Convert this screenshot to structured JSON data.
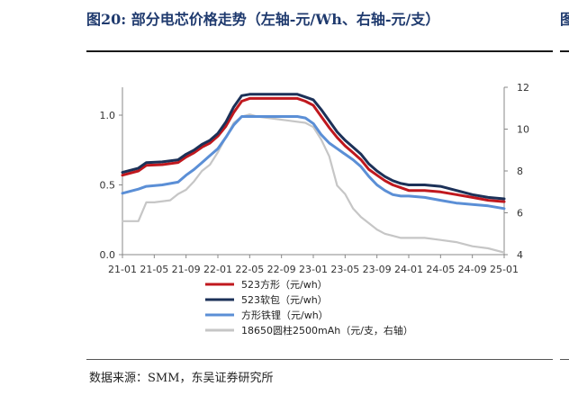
{
  "header": {
    "title": "图20:  部分电芯价格走势（左轴-元/Wh、右轴-元/支）"
  },
  "footer": {
    "source": "数据来源：SMM，东吴证券研究所"
  },
  "chart_data": {
    "type": "line",
    "title": "部分电芯价格走势（左轴-元/Wh、右轴-元/支）",
    "x_tick_labels": [
      "21-01",
      "21-05",
      "21-09",
      "22-01",
      "22-05",
      "22-09",
      "23-01",
      "23-05",
      "23-09",
      "24-01",
      "24-05",
      "24-09",
      "25-01"
    ],
    "x_range": [
      "21-01",
      "25-01"
    ],
    "y_left": {
      "label": "元/Wh",
      "range": [
        0,
        1.2
      ],
      "ticks": [
        "0.0",
        "0.5",
        "1.0"
      ]
    },
    "y_right": {
      "label": "元/支",
      "range": [
        4,
        12
      ],
      "ticks": [
        "4",
        "6",
        "8",
        "10",
        "12"
      ]
    },
    "grid": false,
    "legend_position": "bottom",
    "series": [
      {
        "name": "523方形（元/wh）",
        "axis": "left",
        "color": "#c0181e",
        "points": [
          [
            "2021-01",
            0.57
          ],
          [
            "2021-03",
            0.6
          ],
          [
            "2021-04",
            0.64
          ],
          [
            "2021-06",
            0.645
          ],
          [
            "2021-08",
            0.66
          ],
          [
            "2021-09",
            0.7
          ],
          [
            "2021-10",
            0.73
          ],
          [
            "2021-11",
            0.77
          ],
          [
            "2021-12",
            0.8
          ],
          [
            "2022-01",
            0.85
          ],
          [
            "2022-02",
            0.92
          ],
          [
            "2022-03",
            1.02
          ],
          [
            "2022-04",
            1.1
          ],
          [
            "2022-05",
            1.12
          ],
          [
            "2022-07",
            1.12
          ],
          [
            "2022-09",
            1.12
          ],
          [
            "2022-11",
            1.12
          ],
          [
            "2022-12",
            1.1
          ],
          [
            "2023-01",
            1.07
          ],
          [
            "2023-02",
            0.99
          ],
          [
            "2023-03",
            0.91
          ],
          [
            "2023-04",
            0.84
          ],
          [
            "2023-05",
            0.78
          ],
          [
            "2023-06",
            0.73
          ],
          [
            "2023-07",
            0.68
          ],
          [
            "2023-08",
            0.61
          ],
          [
            "2023-09",
            0.57
          ],
          [
            "2023-10",
            0.53
          ],
          [
            "2023-11",
            0.5
          ],
          [
            "2023-12",
            0.48
          ],
          [
            "2024-01",
            0.46
          ],
          [
            "2024-03",
            0.46
          ],
          [
            "2024-05",
            0.45
          ],
          [
            "2024-07",
            0.43
          ],
          [
            "2024-09",
            0.41
          ],
          [
            "2024-11",
            0.39
          ],
          [
            "2025-01",
            0.38
          ]
        ]
      },
      {
        "name": "523软包（元/wh）",
        "axis": "left",
        "color": "#1c3158",
        "points": [
          [
            "2021-01",
            0.59
          ],
          [
            "2021-03",
            0.62
          ],
          [
            "2021-04",
            0.66
          ],
          [
            "2021-06",
            0.665
          ],
          [
            "2021-08",
            0.68
          ],
          [
            "2021-09",
            0.72
          ],
          [
            "2021-10",
            0.75
          ],
          [
            "2021-11",
            0.79
          ],
          [
            "2021-12",
            0.82
          ],
          [
            "2022-01",
            0.87
          ],
          [
            "2022-02",
            0.95
          ],
          [
            "2022-03",
            1.06
          ],
          [
            "2022-04",
            1.14
          ],
          [
            "2022-05",
            1.15
          ],
          [
            "2022-07",
            1.15
          ],
          [
            "2022-09",
            1.15
          ],
          [
            "2022-11",
            1.15
          ],
          [
            "2022-12",
            1.13
          ],
          [
            "2023-01",
            1.11
          ],
          [
            "2023-02",
            1.04
          ],
          [
            "2023-03",
            0.96
          ],
          [
            "2023-04",
            0.88
          ],
          [
            "2023-05",
            0.82
          ],
          [
            "2023-06",
            0.77
          ],
          [
            "2023-07",
            0.72
          ],
          [
            "2023-08",
            0.65
          ],
          [
            "2023-09",
            0.6
          ],
          [
            "2023-10",
            0.56
          ],
          [
            "2023-11",
            0.53
          ],
          [
            "2023-12",
            0.51
          ],
          [
            "2024-01",
            0.5
          ],
          [
            "2024-03",
            0.5
          ],
          [
            "2024-05",
            0.49
          ],
          [
            "2024-07",
            0.46
          ],
          [
            "2024-09",
            0.43
          ],
          [
            "2024-11",
            0.41
          ],
          [
            "2025-01",
            0.4
          ]
        ]
      },
      {
        "name": "方形铁锂（元/wh）",
        "axis": "left",
        "color": "#5b8fd6",
        "points": [
          [
            "2021-01",
            0.44
          ],
          [
            "2021-03",
            0.47
          ],
          [
            "2021-04",
            0.49
          ],
          [
            "2021-06",
            0.5
          ],
          [
            "2021-08",
            0.52
          ],
          [
            "2021-09",
            0.57
          ],
          [
            "2021-10",
            0.61
          ],
          [
            "2021-11",
            0.66
          ],
          [
            "2021-12",
            0.71
          ],
          [
            "2022-01",
            0.76
          ],
          [
            "2022-02",
            0.84
          ],
          [
            "2022-03",
            0.93
          ],
          [
            "2022-04",
            0.99
          ],
          [
            "2022-05",
            0.99
          ],
          [
            "2022-07",
            0.99
          ],
          [
            "2022-09",
            0.99
          ],
          [
            "2022-11",
            0.99
          ],
          [
            "2022-12",
            0.98
          ],
          [
            "2023-01",
            0.94
          ],
          [
            "2023-02",
            0.86
          ],
          [
            "2023-03",
            0.8
          ],
          [
            "2023-04",
            0.76
          ],
          [
            "2023-05",
            0.72
          ],
          [
            "2023-06",
            0.68
          ],
          [
            "2023-07",
            0.63
          ],
          [
            "2023-08",
            0.56
          ],
          [
            "2023-09",
            0.5
          ],
          [
            "2023-10",
            0.46
          ],
          [
            "2023-11",
            0.43
          ],
          [
            "2023-12",
            0.42
          ],
          [
            "2024-01",
            0.42
          ],
          [
            "2024-03",
            0.41
          ],
          [
            "2024-05",
            0.39
          ],
          [
            "2024-07",
            0.37
          ],
          [
            "2024-09",
            0.36
          ],
          [
            "2024-11",
            0.35
          ],
          [
            "2025-01",
            0.33
          ]
        ]
      },
      {
        "name": "18650圆柱2500mAh（元/支，右轴）",
        "axis": "right",
        "color": "#c6c6c6",
        "points": [
          [
            "2021-01",
            5.6
          ],
          [
            "2021-03",
            5.6
          ],
          [
            "2021-04",
            6.5
          ],
          [
            "2021-05",
            6.5
          ],
          [
            "2021-07",
            6.6
          ],
          [
            "2021-08",
            6.9
          ],
          [
            "2021-09",
            7.1
          ],
          [
            "2021-10",
            7.5
          ],
          [
            "2021-11",
            8.0
          ],
          [
            "2021-12",
            8.3
          ],
          [
            "2022-01",
            8.9
          ],
          [
            "2022-02",
            9.6
          ],
          [
            "2022-03",
            10.3
          ],
          [
            "2022-04",
            10.6
          ],
          [
            "2022-05",
            10.7
          ],
          [
            "2022-06",
            10.6
          ],
          [
            "2022-08",
            10.5
          ],
          [
            "2022-10",
            10.4
          ],
          [
            "2022-12",
            10.3
          ],
          [
            "2023-01",
            10.1
          ],
          [
            "2023-02",
            9.5
          ],
          [
            "2023-03",
            8.7
          ],
          [
            "2023-04",
            7.3
          ],
          [
            "2023-05",
            6.9
          ],
          [
            "2023-06",
            6.2
          ],
          [
            "2023-07",
            5.8
          ],
          [
            "2023-08",
            5.5
          ],
          [
            "2023-09",
            5.2
          ],
          [
            "2023-10",
            5.0
          ],
          [
            "2023-11",
            4.9
          ],
          [
            "2023-12",
            4.8
          ],
          [
            "2024-01",
            4.8
          ],
          [
            "2024-03",
            4.8
          ],
          [
            "2024-05",
            4.7
          ],
          [
            "2024-07",
            4.6
          ],
          [
            "2024-09",
            4.4
          ],
          [
            "2024-11",
            4.3
          ],
          [
            "2025-01",
            4.1
          ]
        ]
      }
    ]
  }
}
